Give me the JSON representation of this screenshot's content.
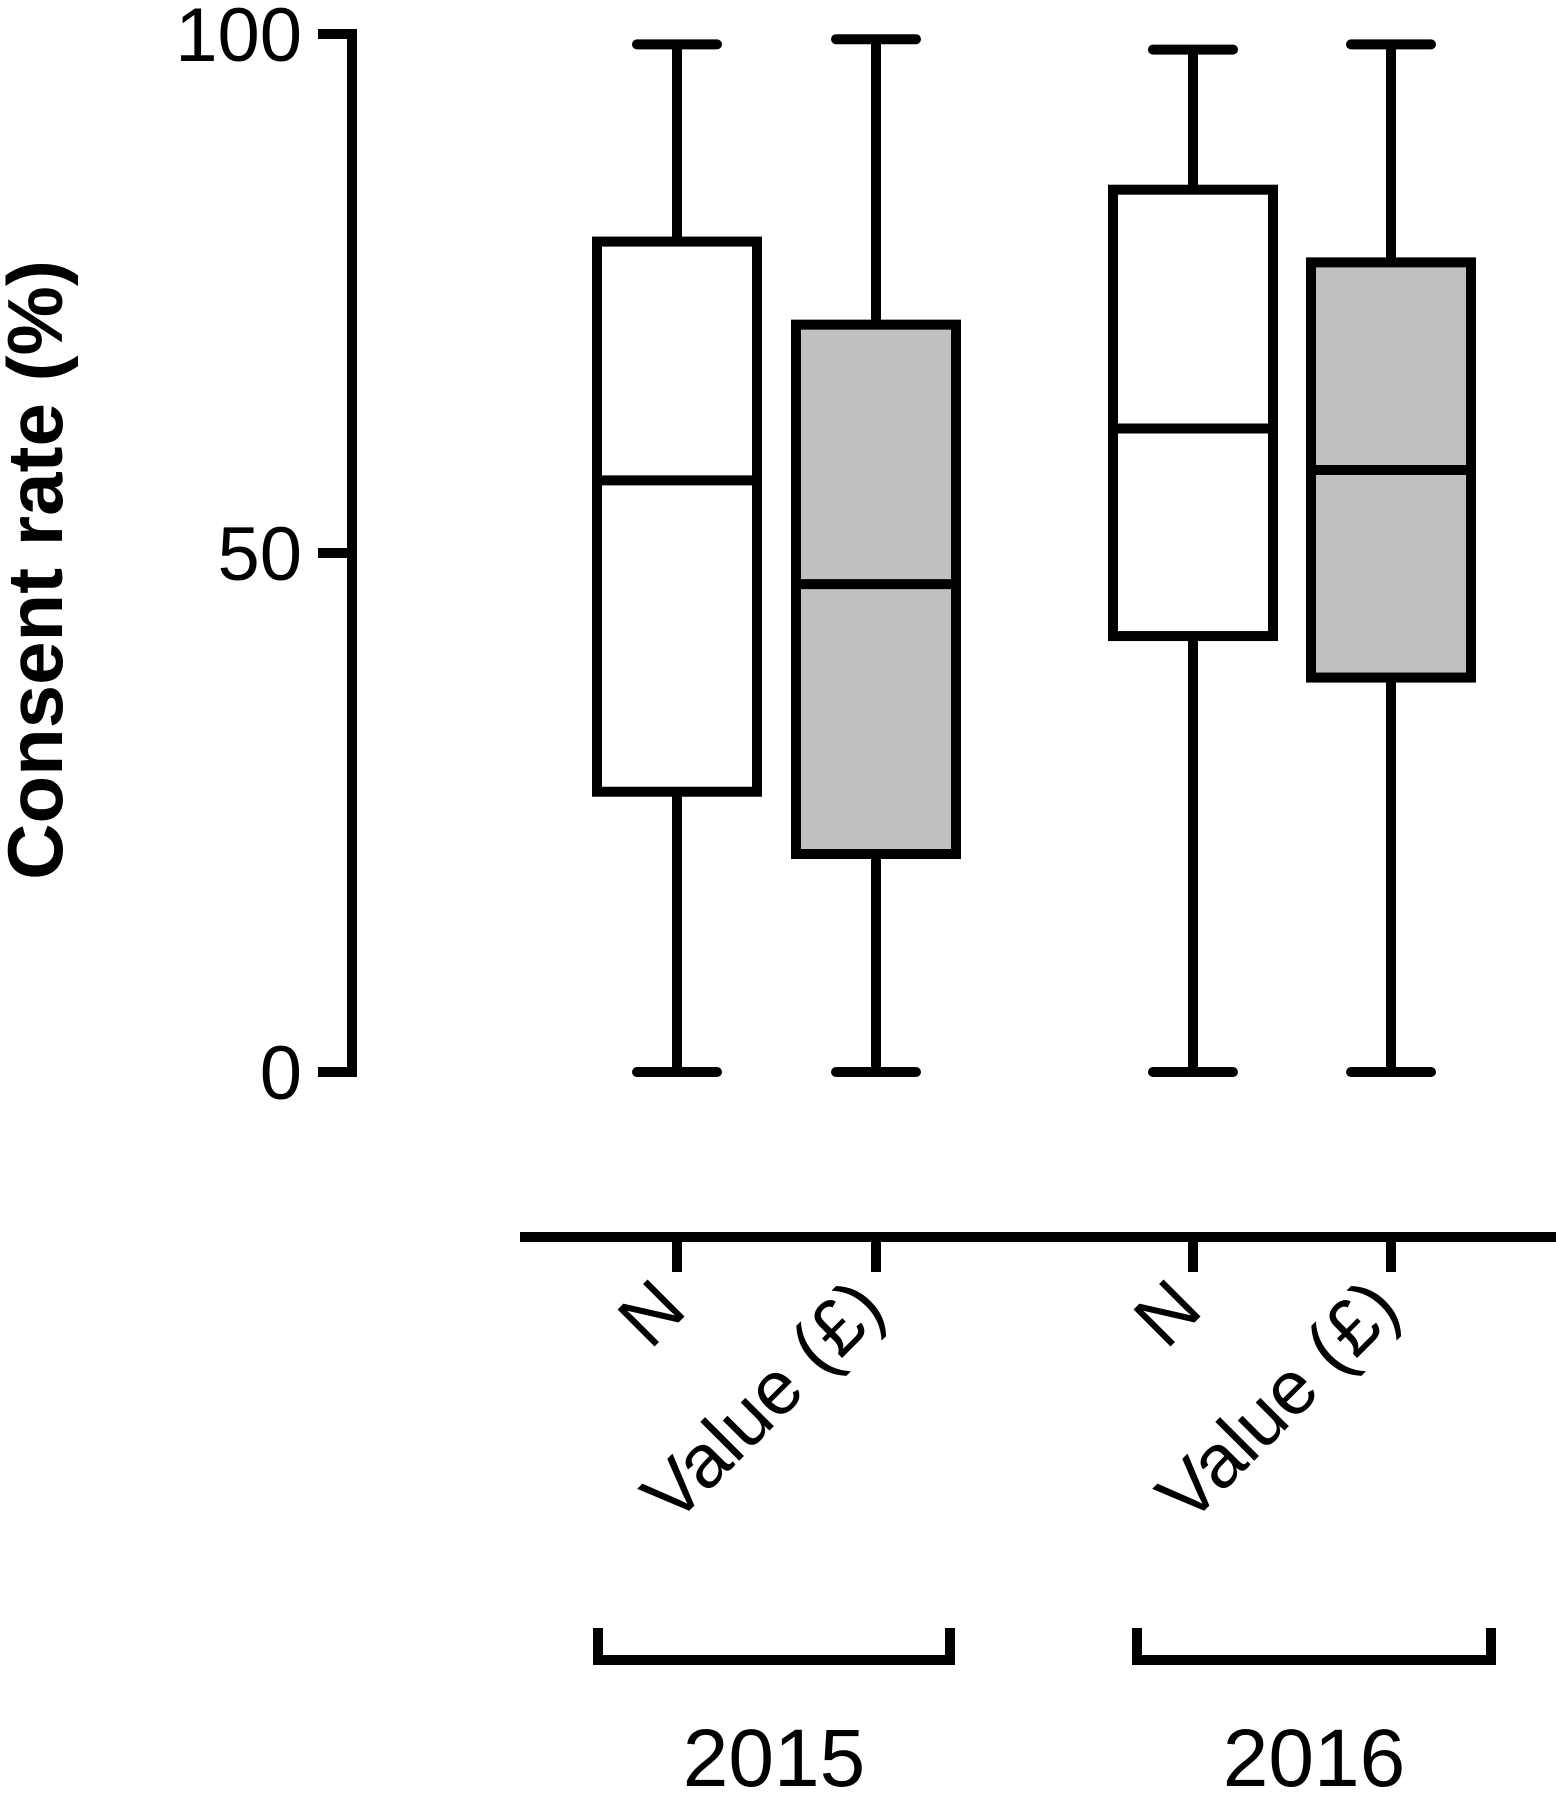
{
  "chart_data": {
    "type": "box",
    "ylabel": "Consent rate (%)",
    "ylim": [
      0,
      100
    ],
    "yticks": [
      "0",
      "50",
      "100"
    ],
    "grid": false,
    "groups": [
      {
        "label": "2015",
        "boxes": [
          {
            "category": "N",
            "min": 0,
            "q1": 27,
            "median": 57,
            "q3": 80,
            "max": 99,
            "fill": "#ffffff"
          },
          {
            "category": "Value (£)",
            "min": 0,
            "q1": 21,
            "median": 47,
            "q3": 72,
            "max": 99.5,
            "fill": "#c0c0c0"
          }
        ]
      },
      {
        "label": "2016",
        "boxes": [
          {
            "category": "N",
            "min": 0,
            "q1": 42,
            "median": 62,
            "q3": 85,
            "max": 98.5,
            "fill": "#ffffff"
          },
          {
            "category": "Value (£)",
            "min": 0,
            "q1": 38,
            "median": 58,
            "q3": 78,
            "max": 99,
            "fill": "#c0c0c0"
          }
        ]
      }
    ]
  }
}
